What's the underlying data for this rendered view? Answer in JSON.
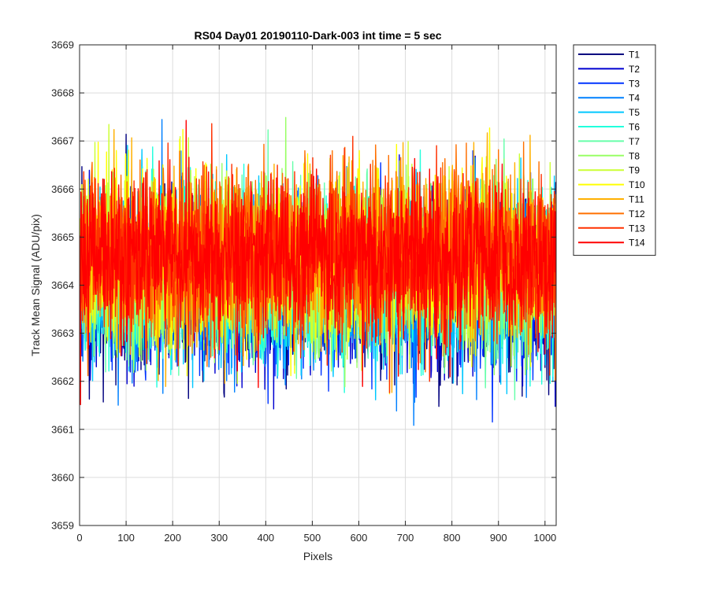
{
  "chart_data": {
    "type": "line",
    "title": "RS04 Day01 20190110-Dark-003 int time = 5 sec",
    "xlabel": "Pixels",
    "ylabel": "Track Mean Signal (ADU/pix)",
    "xlim": [
      0,
      1024
    ],
    "ylim": [
      3659,
      3669
    ],
    "xticks": [
      0,
      100,
      200,
      300,
      400,
      500,
      600,
      700,
      800,
      900,
      1000
    ],
    "yticks": [
      3659,
      3660,
      3661,
      3662,
      3663,
      3664,
      3665,
      3666,
      3667,
      3668,
      3669
    ],
    "grid": true,
    "legend_location": "outside-right-top",
    "n_points": 1024,
    "series": [
      {
        "name": "T1",
        "color": "#00007f",
        "mean": 3663.9,
        "noise_sd": 0.85
      },
      {
        "name": "T2",
        "color": "#0000d0",
        "mean": 3663.9,
        "noise_sd": 0.85
      },
      {
        "name": "T3",
        "color": "#0033ff",
        "mean": 3664.0,
        "noise_sd": 0.85
      },
      {
        "name": "T4",
        "color": "#0080ff",
        "mean": 3664.0,
        "noise_sd": 0.85
      },
      {
        "name": "T5",
        "color": "#00c8ff",
        "mean": 3664.1,
        "noise_sd": 0.85
      },
      {
        "name": "T6",
        "color": "#22ffdd",
        "mean": 3664.2,
        "noise_sd": 0.85
      },
      {
        "name": "T7",
        "color": "#66ffaa",
        "mean": 3664.3,
        "noise_sd": 0.85
      },
      {
        "name": "T8",
        "color": "#99ff66",
        "mean": 3664.4,
        "noise_sd": 0.85
      },
      {
        "name": "T9",
        "color": "#ccff33",
        "mean": 3664.5,
        "noise_sd": 0.85
      },
      {
        "name": "T10",
        "color": "#ffff00",
        "mean": 3664.6,
        "noise_sd": 0.85
      },
      {
        "name": "T11",
        "color": "#ffb000",
        "mean": 3664.6,
        "noise_sd": 0.85
      },
      {
        "name": "T12",
        "color": "#ff7000",
        "mean": 3664.6,
        "noise_sd": 0.85
      },
      {
        "name": "T13",
        "color": "#ff3000",
        "mean": 3664.6,
        "noise_sd": 0.85
      },
      {
        "name": "T14",
        "color": "#ff0000",
        "mean": 3664.6,
        "noise_sd": 0.85
      }
    ]
  }
}
